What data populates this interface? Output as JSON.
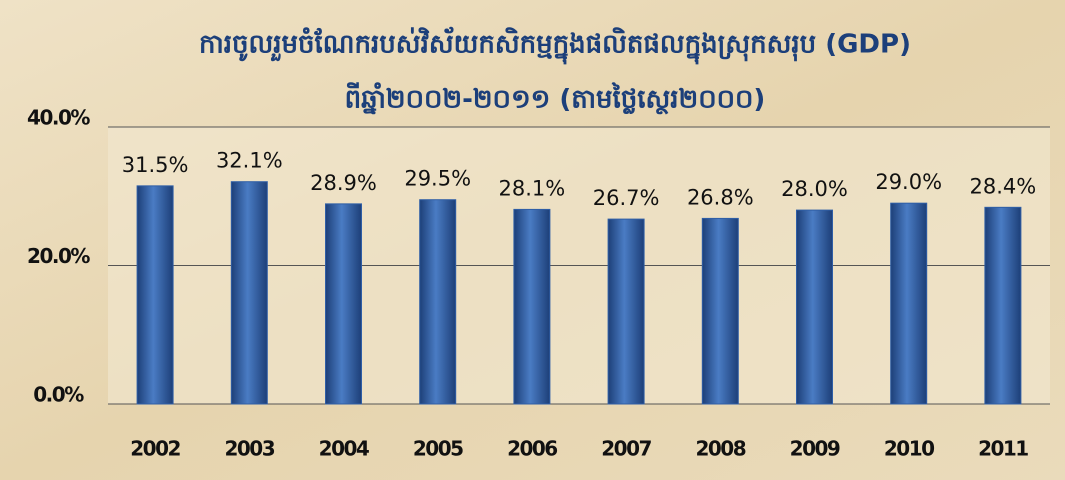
{
  "chart_data": {
    "type": "bar",
    "title": "ការចូលរួមចំណែករបស់វិស័យកសិកម្មក្នុងផលិតផលក្នុងស្រុកសរុប (GDP)",
    "subtitle": "ពីឆ្នាំ២០០២-២០១១ (តាមថ្លៃស្ថេរ២០០០)",
    "categories": [
      "2002",
      "2003",
      "2004",
      "2005",
      "2006",
      "2007",
      "2008",
      "2009",
      "2010",
      "2011"
    ],
    "values": [
      31.5,
      32.1,
      28.9,
      29.5,
      28.1,
      26.7,
      26.8,
      28.0,
      29.0,
      28.4
    ],
    "value_labels": [
      "31.5%",
      "32.1%",
      "28.9%",
      "29.5%",
      "28.1%",
      "26.7%",
      "26.8%",
      "28.0%",
      "29.0%",
      "28.4%"
    ],
    "color": "#2f5ea6",
    "ylim": [
      0,
      40
    ],
    "yticks": [
      {
        "value": 0,
        "label": "0.0%"
      },
      {
        "value": 20,
        "label": "20.0%"
      },
      {
        "value": 40,
        "label": "40.0%"
      }
    ],
    "grid": true
  }
}
